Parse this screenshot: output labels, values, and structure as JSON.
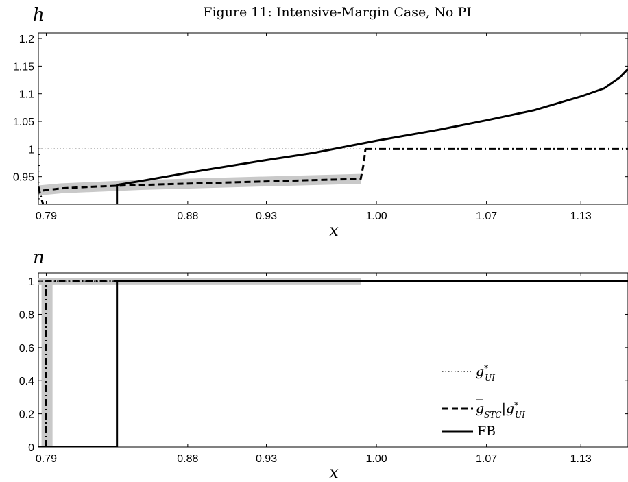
{
  "title": "Figure 11: Intensive-Margin Case, No PI",
  "legend": {
    "entries": [
      {
        "key": "g_UI",
        "style": "dotted",
        "base": "g",
        "sup": "*",
        "sub": "UI",
        "suffix": ""
      },
      {
        "key": "g_STC",
        "style": "dashed",
        "base": "g",
        "overbar": true,
        "sub": "STC",
        "cond_base": "g",
        "cond_sup": "*",
        "cond_sub": "UI"
      },
      {
        "key": "FB",
        "style": "solid",
        "text": "FB"
      }
    ]
  },
  "chart_data": [
    {
      "type": "line",
      "panel": "top",
      "ylabel": "h",
      "xlabel": "x",
      "xlim": [
        0.785,
        1.16
      ],
      "ylim": [
        0.9,
        1.21
      ],
      "x_ticks": [
        0.79,
        0.88,
        0.93,
        1.0,
        1.07,
        1.13
      ],
      "x_tick_labels": [
        "0.79",
        "0.88",
        "0.93",
        "1.00",
        "1.07",
        "1.13"
      ],
      "y_ticks": [
        0.95,
        1,
        1.05,
        1.1,
        1.15,
        1.2
      ],
      "y_tick_labels": [
        "0.95",
        "1",
        "1.05",
        "1.1",
        "1.15",
        "1.2"
      ],
      "series": [
        {
          "name": "g_UI",
          "style": "dotted",
          "x": [
            0.785,
            0.99
          ],
          "y": [
            1.0,
            1.0
          ]
        },
        {
          "name": "g_STC",
          "style": "dashdot",
          "x": [
            0.785,
            0.786,
            0.787,
            0.788
          ],
          "y": [
            0.932,
            0.92,
            0.91,
            0.9
          ]
        },
        {
          "name": "g_STC",
          "style": "dashed",
          "x": [
            0.788,
            0.8,
            0.82,
            0.85,
            0.9,
            0.95,
            0.99,
            0.992,
            0.993
          ],
          "y": [
            0.925,
            0.929,
            0.932,
            0.935,
            0.939,
            0.943,
            0.946,
            0.975,
            1.0
          ]
        },
        {
          "name": "g_STC",
          "style": "dashdot",
          "x": [
            0.993,
            1.16
          ],
          "y": [
            1.0,
            1.0
          ]
        },
        {
          "name": "FB",
          "style": "solid",
          "x": [
            0.835,
            0.835,
            0.85,
            0.88,
            0.93,
            0.96,
            1.0,
            1.04,
            1.07,
            1.1,
            1.13,
            1.145,
            1.155,
            1.16
          ],
          "y": [
            0.9,
            0.935,
            0.942,
            0.957,
            0.98,
            0.993,
            1.015,
            1.035,
            1.052,
            1.07,
            1.095,
            1.11,
            1.13,
            1.145
          ]
        }
      ],
      "bands": [
        {
          "x": [
            0.785,
            0.8,
            0.85,
            0.9,
            0.95,
            0.99
          ],
          "y": [
            0.925,
            0.929,
            0.935,
            0.939,
            0.943,
            0.946
          ],
          "half_width": 0.009
        }
      ]
    },
    {
      "type": "line",
      "panel": "bottom",
      "ylabel": "n",
      "xlabel": "x",
      "xlim": [
        0.785,
        1.16
      ],
      "ylim": [
        0,
        1.05
      ],
      "x_ticks": [
        0.79,
        0.88,
        0.93,
        1.0,
        1.07,
        1.13
      ],
      "x_tick_labels": [
        "0.79",
        "0.88",
        "0.93",
        "1.00",
        "1.07",
        "1.13"
      ],
      "y_ticks": [
        0,
        0.2,
        0.4,
        0.6,
        0.8,
        1
      ],
      "y_tick_labels": [
        "0",
        "0.2",
        "0.4",
        "0.6",
        "0.8",
        "1"
      ],
      "series": [
        {
          "name": "g_UI",
          "style": "dotted",
          "x": [
            0.785,
            0.99
          ],
          "y": [
            1.0,
            1.0
          ]
        },
        {
          "name": "g_STC",
          "style": "dashdot",
          "x": [
            0.79,
            0.79,
            1.16
          ],
          "y": [
            0,
            1.0,
            1.0
          ]
        },
        {
          "name": "FB",
          "style": "solid",
          "x": [
            0.785,
            0.835,
            0.835,
            1.16
          ],
          "y": [
            0,
            0,
            1.0,
            1.0
          ]
        }
      ],
      "bands": [
        {
          "x": [
            0.785,
            0.99
          ],
          "y": [
            1.0,
            1.0
          ],
          "half_width": 0.02
        }
      ]
    }
  ]
}
